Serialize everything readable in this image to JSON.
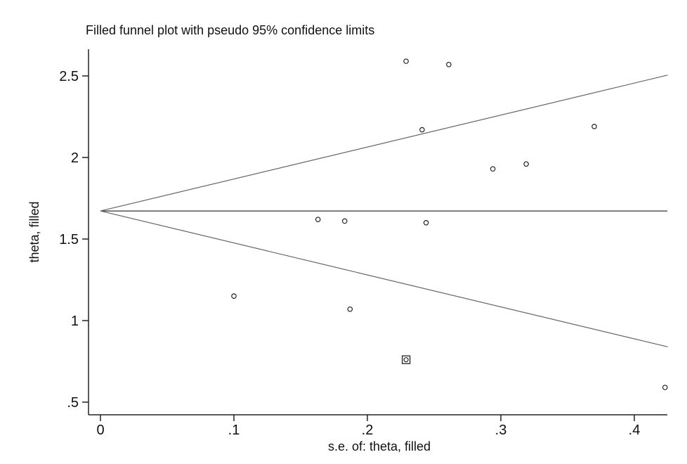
{
  "chart_data": {
    "type": "scatter",
    "title": "Filled funnel plot with pseudo 95% confidence limits",
    "xlabel": "s.e. of: theta, filled",
    "ylabel": "theta, filled",
    "xlim": [
      0,
      0.425
    ],
    "ylim": [
      0.5,
      2.65
    ],
    "x_ticks": [
      0,
      0.1,
      0.2,
      0.3,
      0.4
    ],
    "x_tick_labels": [
      "0",
      ".1",
      ".2",
      ".3",
      ".4"
    ],
    "y_ticks": [
      0.5,
      1,
      1.5,
      2,
      2.5
    ],
    "y_tick_labels": [
      ".5",
      "1",
      "1.5",
      "2",
      "2.5"
    ],
    "grid": false,
    "pooled_estimate": 1.672,
    "confidence_limits": "pseudo 95%",
    "series": [
      {
        "marker": "circle",
        "points": [
          {
            "x": 0.1,
            "y": 1.15
          },
          {
            "x": 0.163,
            "y": 1.62
          },
          {
            "x": 0.183,
            "y": 1.61
          },
          {
            "x": 0.187,
            "y": 1.07
          },
          {
            "x": 0.229,
            "y": 2.59
          },
          {
            "x": 0.241,
            "y": 2.17
          },
          {
            "x": 0.244,
            "y": 1.6
          },
          {
            "x": 0.261,
            "y": 2.57
          },
          {
            "x": 0.294,
            "y": 1.93
          },
          {
            "x": 0.319,
            "y": 1.96
          },
          {
            "x": 0.37,
            "y": 2.19
          },
          {
            "x": 0.423,
            "y": 0.59
          }
        ]
      },
      {
        "marker": "circle-in-square",
        "points": [
          {
            "x": 0.229,
            "y": 0.76
          }
        ]
      }
    ]
  }
}
